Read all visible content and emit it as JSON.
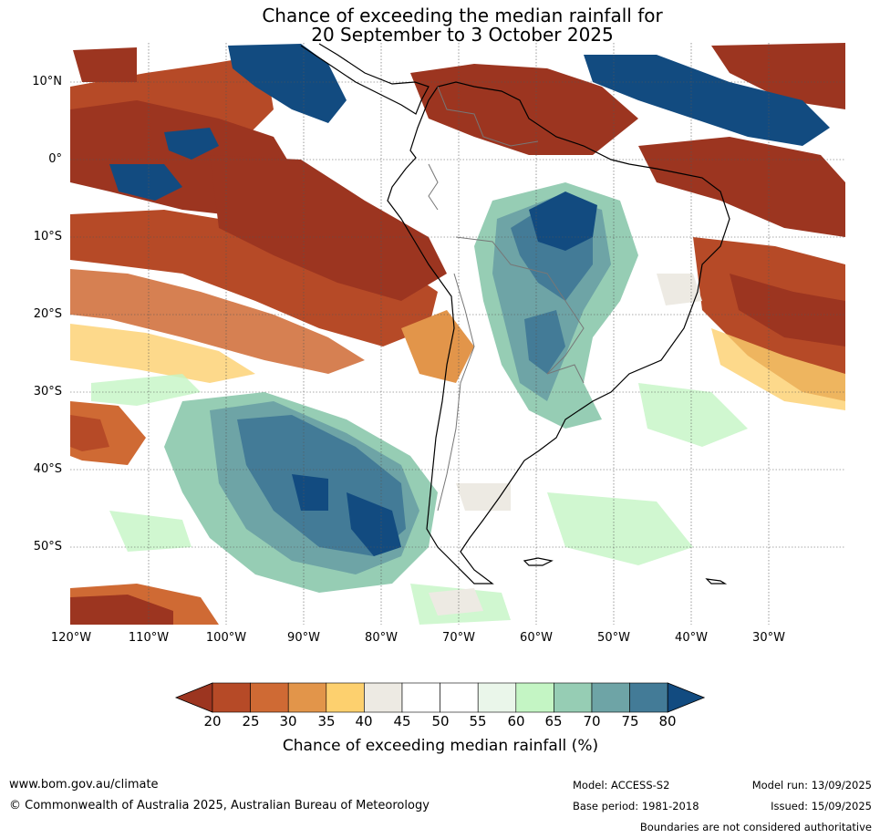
{
  "title_line1": "Chance of exceeding the median rainfall for",
  "title_line2": "20 September to 3 October 2025",
  "lat_labels": [
    "10°N",
    "0°",
    "10°S",
    "20°S",
    "30°S",
    "40°S",
    "50°S"
  ],
  "lon_labels": [
    "120°W",
    "110°W",
    "100°W",
    "90°W",
    "80°W",
    "70°W",
    "60°W",
    "50°W",
    "40°W",
    "30°W"
  ],
  "colorbar": {
    "label": "Chance of exceeding median rainfall (%)",
    "ticks": [
      "20",
      "25",
      "30",
      "35",
      "40",
      "45",
      "50",
      "55",
      "60",
      "65",
      "70",
      "75",
      "80"
    ],
    "colors": [
      "#9c3520",
      "#b64a27",
      "#cf6a34",
      "#e2954a",
      "#fdd06e",
      "#edeae3",
      "#ffffff",
      "#ffffff",
      "#eaf6ea",
      "#c4f5c4",
      "#96cdb4",
      "#6ea4a6",
      "#437b97",
      "#124b80"
    ]
  },
  "footer": {
    "website": "www.bom.gov.au/climate",
    "copyright": "© Commonwealth of Australia 2025, Australian Bureau of Meteorology",
    "model": "Model: ACCESS-S2",
    "base_period": "Base period: 1981-2018",
    "model_run": "Model run: 13/09/2025",
    "issued": "Issued: 15/09/2025",
    "boundaries": "Boundaries are not considered authoritative"
  }
}
